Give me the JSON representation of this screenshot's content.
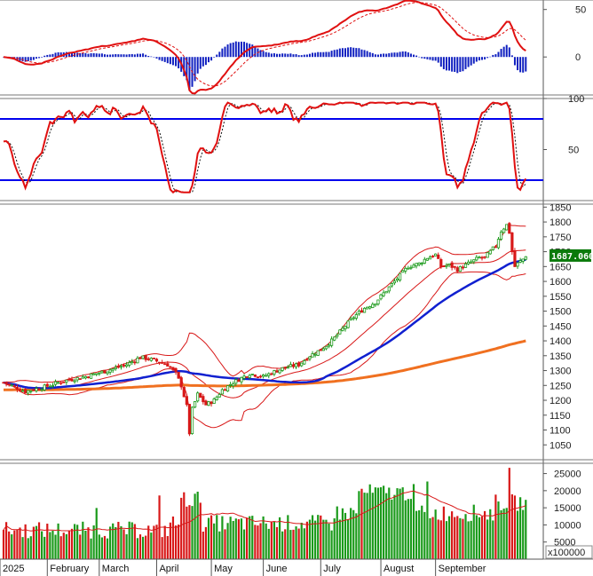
{
  "chart_data": [
    {
      "type": "line",
      "name_hint": "macd",
      "ylim": [
        -40,
        60
      ],
      "yticks": [
        0,
        50
      ],
      "series": [
        {
          "role": "macd",
          "color": "#e01010"
        },
        {
          "role": "signal",
          "color": "#e01010"
        },
        {
          "role": "histogram",
          "color": "#1020c0"
        }
      ]
    },
    {
      "type": "line",
      "name_hint": "stochastic",
      "ylim": [
        0,
        100
      ],
      "yticks": [
        50,
        100
      ],
      "levels": [
        80,
        20
      ],
      "level_color": "#0000ee"
    },
    {
      "type": "line",
      "name_hint": "price",
      "ylim": [
        1000,
        1860
      ],
      "yticks": [
        1050,
        1100,
        1150,
        1200,
        1250,
        1300,
        1350,
        1400,
        1450,
        1500,
        1550,
        1600,
        1650,
        1700,
        1750,
        1800,
        1850
      ],
      "last_price_label": "1687.060",
      "colors": {
        "up": "#1a9a1a",
        "down": "#d81818",
        "ma_fast": "#1020d0",
        "ma_slow": "#f07020",
        "band": "#d81818"
      },
      "months": [
        "2025",
        "February",
        "March",
        "April",
        "May",
        "June",
        "July",
        "August",
        "September"
      ],
      "anchors": [
        [
          0,
          1260
        ],
        [
          8,
          1230
        ],
        [
          15,
          1245
        ],
        [
          22,
          1265
        ],
        [
          30,
          1280
        ],
        [
          38,
          1300
        ],
        [
          45,
          1320
        ],
        [
          50,
          1345
        ],
        [
          55,
          1335
        ],
        [
          60,
          1320
        ],
        [
          63,
          1290
        ],
        [
          65,
          1250
        ],
        [
          67,
          1180
        ],
        [
          68,
          1090
        ],
        [
          69,
          1170
        ],
        [
          71,
          1220
        ],
        [
          74,
          1185
        ],
        [
          77,
          1200
        ],
        [
          80,
          1235
        ],
        [
          84,
          1260
        ],
        [
          90,
          1290
        ],
        [
          95,
          1280
        ],
        [
          100,
          1300
        ],
        [
          103,
          1310
        ],
        [
          108,
          1320
        ],
        [
          112,
          1350
        ],
        [
          116,
          1370
        ],
        [
          120,
          1400
        ],
        [
          124,
          1440
        ],
        [
          128,
          1480
        ],
        [
          132,
          1510
        ],
        [
          136,
          1530
        ],
        [
          140,
          1570
        ],
        [
          144,
          1610
        ],
        [
          148,
          1650
        ],
        [
          152,
          1660
        ],
        [
          155,
          1680
        ],
        [
          158,
          1690
        ],
        [
          160,
          1650
        ],
        [
          163,
          1655
        ],
        [
          166,
          1640
        ],
        [
          170,
          1660
        ],
        [
          174,
          1680
        ],
        [
          176,
          1680
        ],
        [
          180,
          1720
        ],
        [
          182,
          1770
        ],
        [
          184,
          1790
        ],
        [
          185,
          1765
        ],
        [
          186,
          1700
        ],
        [
          187,
          1650
        ],
        [
          188,
          1660
        ],
        [
          190,
          1675
        ],
        [
          191,
          1687
        ]
      ]
    },
    {
      "type": "bar",
      "name_hint": "volume",
      "ylim": [
        0,
        28000
      ],
      "yticks": [
        5000,
        10000,
        15000,
        20000,
        25000
      ],
      "unit_label": "x100000",
      "colors": {
        "up": "#1a9a1a",
        "down": "#d81818",
        "ma": "#d81818"
      }
    }
  ]
}
